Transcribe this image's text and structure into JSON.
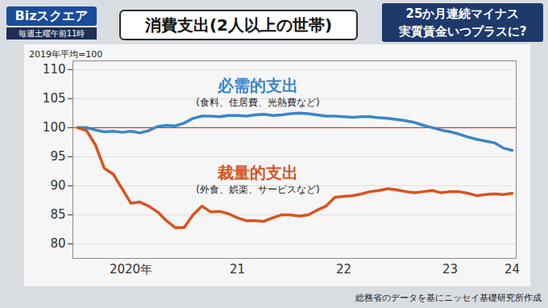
{
  "header": {
    "logo": "Bizスクエア",
    "schedule": "毎週土曜午前11時",
    "headline": [
      "25か月連続マイナス",
      "実質賃金いつプラスに?"
    ]
  },
  "chart_data": {
    "type": "line",
    "title": "消費支出(2人以上の世帯)",
    "y_label": "2019年平均=100",
    "source": "総務省のデータを基にニッセイ基礎研究所作成",
    "categories": [
      null,
      null,
      null,
      null,
      null,
      null,
      "2020年",
      null,
      null,
      null,
      null,
      null,
      null,
      null,
      null,
      null,
      null,
      null,
      "21",
      null,
      null,
      null,
      null,
      null,
      null,
      null,
      null,
      null,
      null,
      null,
      "22",
      null,
      null,
      null,
      null,
      null,
      null,
      null,
      null,
      null,
      null,
      null,
      "23",
      null,
      null,
      null,
      null,
      null,
      null,
      "24"
    ],
    "series": [
      {
        "name": "必需的支出",
        "subtitle": "(食料、住居費、光熱費など)",
        "color": "#3a86c8",
        "values": [
          100,
          100,
          99.6,
          99.3,
          99.4,
          99.2,
          99.4,
          99.1,
          99.5,
          100.2,
          100.4,
          100.3,
          100.8,
          101.6,
          102.0,
          102.0,
          101.9,
          102.1,
          102.1,
          102.0,
          102.2,
          102.3,
          102.1,
          102.2,
          102.4,
          102.5,
          102.4,
          102.2,
          102.0,
          102.0,
          101.9,
          101.8,
          101.9,
          101.9,
          101.7,
          101.6,
          101.4,
          101.2,
          100.9,
          100.4,
          100.0,
          99.6,
          99.3,
          98.9,
          98.4,
          98.0,
          97.7,
          97.4,
          96.5,
          96.1
        ]
      },
      {
        "name": "裁量的支出",
        "subtitle": "(外食、娯楽、サービスなど)",
        "color": "#d9531e",
        "values": [
          100,
          99.5,
          97,
          93,
          92,
          89.5,
          87,
          87.2,
          86.5,
          85.5,
          84,
          82.8,
          82.8,
          85,
          86.5,
          85.5,
          85.6,
          85.2,
          84.5,
          84,
          84,
          83.9,
          84.5,
          85,
          85,
          84.8,
          85,
          85.8,
          86.5,
          88,
          88.2,
          88.3,
          88.6,
          89,
          89.2,
          89.5,
          89.3,
          89,
          88.8,
          89,
          89.2,
          88.8,
          89,
          89,
          88.7,
          88.3,
          88.5,
          88.6,
          88.5,
          88.7
        ]
      }
    ],
    "ylim": [
      77.5,
      111.5
    ],
    "yticks": [
      80,
      85,
      90,
      95,
      100,
      105,
      110
    ],
    "grid": true,
    "baseline": 100
  }
}
